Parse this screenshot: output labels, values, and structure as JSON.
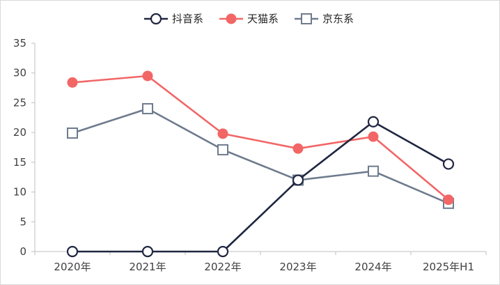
{
  "chart_data": {
    "type": "line",
    "categories": [
      "2020年",
      "2021年",
      "2022年",
      "2023年",
      "2024年",
      "2025年H1"
    ],
    "ylim": [
      0,
      35
    ],
    "yticks": [
      0,
      5,
      10,
      15,
      20,
      25,
      30,
      35
    ],
    "grid": false,
    "legend_position": "top-center",
    "series": [
      {
        "name": "抖音系",
        "values": [
          0,
          0,
          0,
          12,
          21.8,
          14.7
        ],
        "color": "#1f2640",
        "marker": "circle-open"
      },
      {
        "name": "天猫系",
        "values": [
          28.4,
          29.5,
          19.8,
          17.3,
          19.3,
          8.7
        ],
        "color": "#f26666",
        "marker": "circle-filled"
      },
      {
        "name": "京东系",
        "values": [
          19.9,
          24.0,
          17.1,
          12.0,
          13.5,
          8.1
        ],
        "color": "#6e7b8e",
        "marker": "square-open"
      }
    ]
  }
}
